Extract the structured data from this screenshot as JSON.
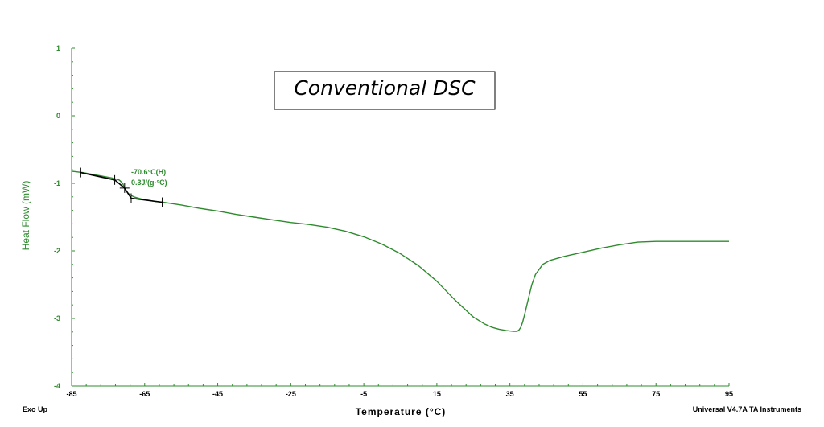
{
  "chart_data": {
    "type": "line",
    "title": "Conventional DSC",
    "xlabel": "Temperature (°C)",
    "ylabel": "Heat Flow (mW)",
    "xlim": [
      -85,
      95
    ],
    "ylim": [
      -4,
      1
    ],
    "x_ticks": [
      -85,
      -65,
      -45,
      -25,
      -5,
      15,
      35,
      55,
      75,
      95
    ],
    "y_ticks": [
      1,
      0,
      -1,
      -2,
      -3,
      -4
    ],
    "x_tick_labels": [
      "-85",
      "-65",
      "-45",
      "-25",
      "-5",
      "15",
      "35",
      "55",
      "75",
      "95"
    ],
    "y_tick_labels": [
      "1",
      "0",
      "-1",
      "-2",
      "-3",
      "-4"
    ],
    "grid": false,
    "series": [
      {
        "color": "#2e8b2e",
        "x": [
          -85,
          -82,
          -78,
          -74,
          -72,
          -71,
          -70.5,
          -69.5,
          -68,
          -66,
          -64,
          -62,
          -60,
          -55,
          -50,
          -45,
          -40,
          -35,
          -30,
          -25,
          -20,
          -15,
          -10,
          -5,
          0,
          5,
          10,
          15,
          20,
          25,
          28,
          30,
          32,
          34,
          36,
          37,
          37.5,
          38,
          38.5,
          39,
          40,
          41,
          42,
          44,
          46,
          48,
          50,
          55,
          60,
          65,
          70,
          75,
          80,
          85,
          90,
          95
        ],
        "y": [
          -0.82,
          -0.84,
          -0.88,
          -0.92,
          -0.95,
          -1.0,
          -1.08,
          -1.15,
          -1.2,
          -1.23,
          -1.25,
          -1.27,
          -1.28,
          -1.32,
          -1.37,
          -1.41,
          -1.46,
          -1.5,
          -1.54,
          -1.58,
          -1.61,
          -1.65,
          -1.71,
          -1.79,
          -1.9,
          -2.04,
          -2.22,
          -2.45,
          -2.73,
          -2.98,
          -3.08,
          -3.13,
          -3.16,
          -3.18,
          -3.19,
          -3.19,
          -3.17,
          -3.13,
          -3.05,
          -2.95,
          -2.72,
          -2.5,
          -2.35,
          -2.2,
          -2.14,
          -2.11,
          -2.08,
          -2.02,
          -1.96,
          -1.91,
          -1.87,
          -1.86,
          -1.86,
          -1.86,
          -1.86,
          -1.86
        ]
      }
    ],
    "annotation": {
      "lines": [
        "-70.6°C(H)",
        "0.3J/(g·°C)"
      ],
      "tangent_points": [
        [
          -82.5,
          -0.84
        ],
        [
          -73.2,
          -0.95
        ],
        [
          -70.5,
          -1.07
        ],
        [
          -68.7,
          -1.22
        ],
        [
          -60.2,
          -1.28
        ]
      ],
      "color": "#000000"
    },
    "footer_left": "Exo Up",
    "footer_right": "Universal V4.7A TA Instruments"
  }
}
